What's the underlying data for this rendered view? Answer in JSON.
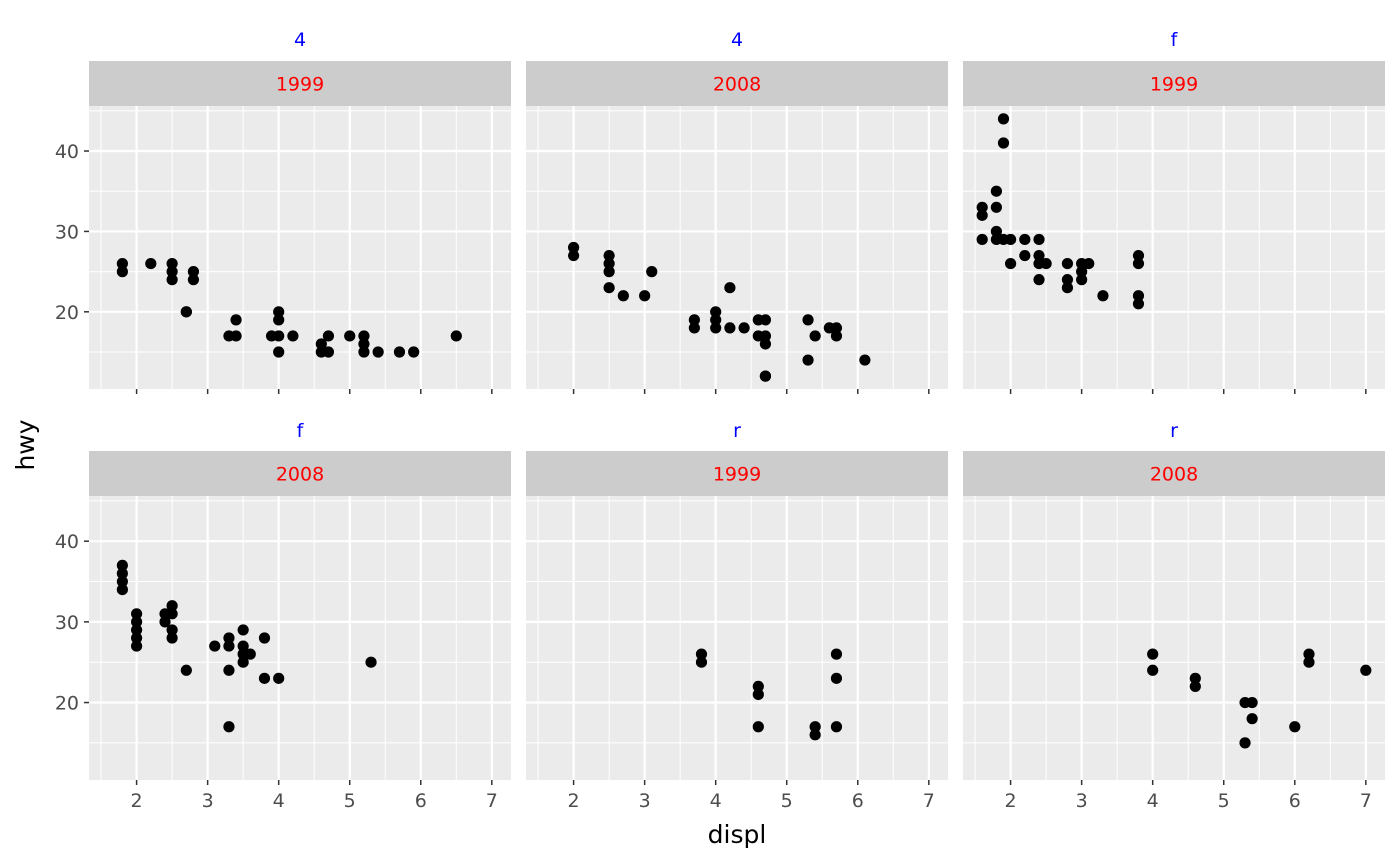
{
  "chart_data": {
    "type": "scatter",
    "xlabel": "displ",
    "ylabel": "hwy",
    "xlim": [
      1.33,
      7.27
    ],
    "ylim": [
      10.4,
      45.6
    ],
    "x_ticks": [
      2,
      3,
      4,
      5,
      6,
      7
    ],
    "y_ticks": [
      20,
      30,
      40
    ],
    "grid": true,
    "colors": {
      "panel_background": "#EBEBEB",
      "strip_background": "#CCCCCC",
      "outer_strip_text": "#0000FF",
      "inner_strip_text": "#FF0000",
      "point": "#000000",
      "grid": "#FFFFFF"
    },
    "panels": [
      {
        "drv": "4",
        "year": "1999",
        "points": [
          [
            1.8,
            26
          ],
          [
            1.8,
            25
          ],
          [
            2.2,
            26
          ],
          [
            2.5,
            26
          ],
          [
            2.5,
            25
          ],
          [
            2.5,
            24
          ],
          [
            2.7,
            20
          ],
          [
            2.7,
            20
          ],
          [
            2.8,
            25
          ],
          [
            2.8,
            24
          ],
          [
            3.3,
            17
          ],
          [
            3.4,
            19
          ],
          [
            3.4,
            17
          ],
          [
            4.0,
            20
          ],
          [
            4.0,
            19
          ],
          [
            4.0,
            17
          ],
          [
            4.0,
            15
          ],
          [
            3.9,
            17
          ],
          [
            4.2,
            17
          ],
          [
            4.6,
            16
          ],
          [
            4.6,
            15
          ],
          [
            4.7,
            17
          ],
          [
            4.7,
            15
          ],
          [
            5.0,
            17
          ],
          [
            5.2,
            17
          ],
          [
            5.2,
            16
          ],
          [
            5.2,
            15
          ],
          [
            5.4,
            15
          ],
          [
            5.7,
            15
          ],
          [
            5.9,
            15
          ],
          [
            6.5,
            17
          ]
        ]
      },
      {
        "drv": "4",
        "year": "2008",
        "points": [
          [
            2.0,
            28
          ],
          [
            2.0,
            27
          ],
          [
            2.5,
            27
          ],
          [
            2.5,
            26
          ],
          [
            2.5,
            25
          ],
          [
            2.5,
            23
          ],
          [
            2.7,
            22
          ],
          [
            3.0,
            22
          ],
          [
            3.1,
            25
          ],
          [
            3.7,
            19
          ],
          [
            3.7,
            18
          ],
          [
            4.0,
            20
          ],
          [
            4.0,
            19
          ],
          [
            4.0,
            18
          ],
          [
            4.2,
            23
          ],
          [
            4.2,
            18
          ],
          [
            4.4,
            18
          ],
          [
            4.6,
            19
          ],
          [
            4.6,
            17
          ],
          [
            4.7,
            19
          ],
          [
            4.7,
            17
          ],
          [
            4.7,
            16
          ],
          [
            4.7,
            12
          ],
          [
            4.7,
            12
          ],
          [
            5.3,
            19
          ],
          [
            5.3,
            14
          ],
          [
            5.4,
            17
          ],
          [
            5.6,
            18
          ],
          [
            5.7,
            18
          ],
          [
            5.7,
            17
          ],
          [
            6.1,
            14
          ]
        ]
      },
      {
        "drv": "f",
        "year": "1999",
        "points": [
          [
            1.6,
            33
          ],
          [
            1.6,
            32
          ],
          [
            1.6,
            29
          ],
          [
            1.8,
            35
          ],
          [
            1.8,
            33
          ],
          [
            1.8,
            30
          ],
          [
            1.8,
            29
          ],
          [
            1.9,
            44
          ],
          [
            1.9,
            41
          ],
          [
            1.9,
            29
          ],
          [
            2.0,
            29
          ],
          [
            2.0,
            26
          ],
          [
            2.2,
            29
          ],
          [
            2.2,
            27
          ],
          [
            2.4,
            29
          ],
          [
            2.4,
            27
          ],
          [
            2.4,
            26
          ],
          [
            2.4,
            24
          ],
          [
            2.5,
            26
          ],
          [
            2.8,
            26
          ],
          [
            2.8,
            24
          ],
          [
            2.8,
            23
          ],
          [
            3.0,
            26
          ],
          [
            3.0,
            25
          ],
          [
            3.0,
            24
          ],
          [
            3.1,
            26
          ],
          [
            3.3,
            22
          ],
          [
            3.8,
            27
          ],
          [
            3.8,
            26
          ],
          [
            3.8,
            22
          ],
          [
            3.8,
            21
          ]
        ]
      },
      {
        "drv": "f",
        "year": "2008",
        "points": [
          [
            1.8,
            37
          ],
          [
            1.8,
            36
          ],
          [
            1.8,
            35
          ],
          [
            1.8,
            34
          ],
          [
            2.0,
            31
          ],
          [
            2.0,
            30
          ],
          [
            2.0,
            29
          ],
          [
            2.0,
            28
          ],
          [
            2.0,
            27
          ],
          [
            2.4,
            31
          ],
          [
            2.4,
            30
          ],
          [
            2.5,
            32
          ],
          [
            2.5,
            31
          ],
          [
            2.5,
            29
          ],
          [
            2.5,
            28
          ],
          [
            2.7,
            24
          ],
          [
            3.1,
            27
          ],
          [
            3.3,
            28
          ],
          [
            3.3,
            27
          ],
          [
            3.3,
            24
          ],
          [
            3.3,
            17
          ],
          [
            3.5,
            29
          ],
          [
            3.5,
            27
          ],
          [
            3.5,
            26
          ],
          [
            3.5,
            25
          ],
          [
            3.6,
            26
          ],
          [
            3.8,
            28
          ],
          [
            3.8,
            23
          ],
          [
            4.0,
            23
          ],
          [
            5.3,
            25
          ]
        ]
      },
      {
        "drv": "r",
        "year": "1999",
        "points": [
          [
            3.8,
            26
          ],
          [
            3.8,
            25
          ],
          [
            4.6,
            22
          ],
          [
            4.6,
            21
          ],
          [
            4.6,
            17
          ],
          [
            5.4,
            17
          ],
          [
            5.4,
            16
          ],
          [
            5.7,
            26
          ],
          [
            5.7,
            23
          ],
          [
            5.7,
            17
          ]
        ]
      },
      {
        "drv": "r",
        "year": "2008",
        "points": [
          [
            4.0,
            26
          ],
          [
            4.0,
            24
          ],
          [
            4.6,
            23
          ],
          [
            4.6,
            22
          ],
          [
            5.3,
            20
          ],
          [
            5.3,
            15
          ],
          [
            5.4,
            20
          ],
          [
            5.4,
            18
          ],
          [
            6.0,
            17
          ],
          [
            6.2,
            26
          ],
          [
            6.2,
            25
          ],
          [
            7.0,
            24
          ]
        ]
      }
    ]
  }
}
